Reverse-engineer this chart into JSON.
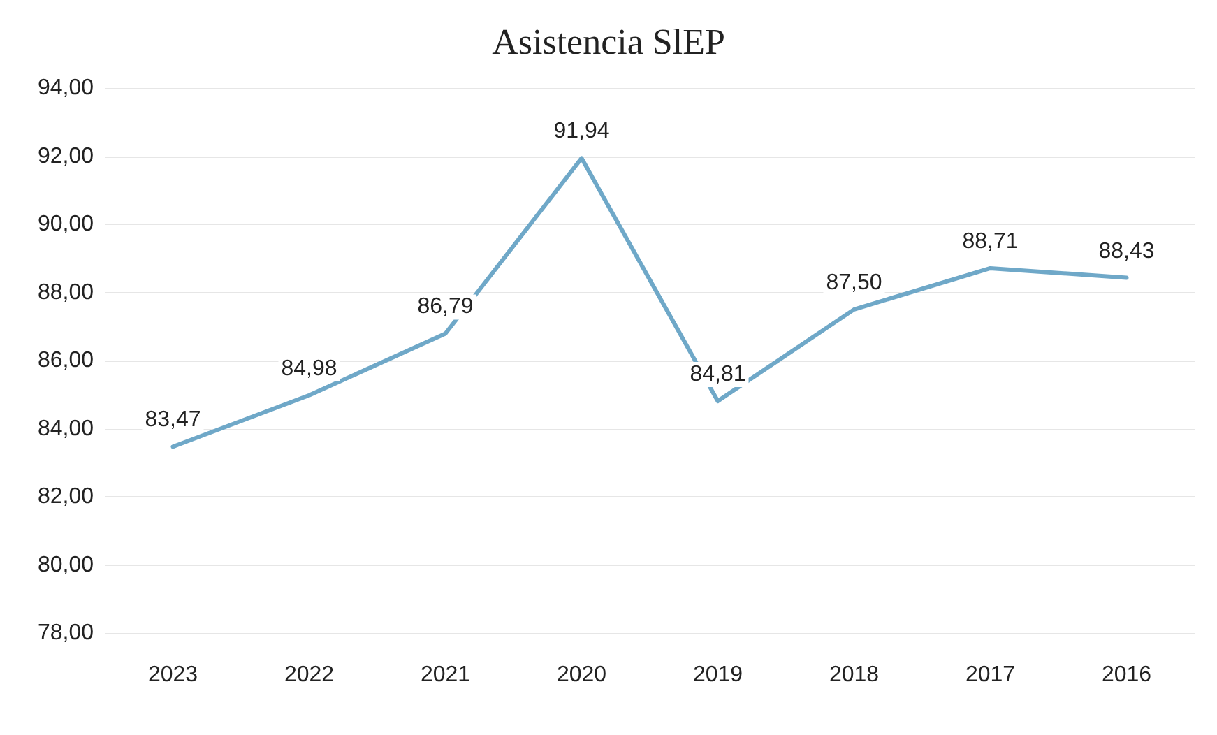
{
  "chart_data": {
    "type": "line",
    "title": "Asistencia SlEP",
    "categories": [
      "2023",
      "2022",
      "2021",
      "2020",
      "2019",
      "2018",
      "2017",
      "2016"
    ],
    "values": [
      83.47,
      84.98,
      86.79,
      91.94,
      84.81,
      87.5,
      88.71,
      88.43
    ],
    "value_labels": [
      "83,47",
      "84,98",
      "86,79",
      "91,94",
      "84,81",
      "87,50",
      "88,71",
      "88,43"
    ],
    "color": "#6fa8c8",
    "ylim": [
      78,
      94
    ],
    "yticks": [
      {
        "value": 78,
        "label": "78,00"
      },
      {
        "value": 80,
        "label": "80,00"
      },
      {
        "value": 82,
        "label": "82,00"
      },
      {
        "value": 84,
        "label": "84,00"
      },
      {
        "value": 86,
        "label": "86,00"
      },
      {
        "value": 88,
        "label": "88,00"
      },
      {
        "value": 90,
        "label": "90,00"
      },
      {
        "value": 92,
        "label": "92,00"
      },
      {
        "value": 94,
        "label": "94,00"
      }
    ],
    "grid": "y",
    "marker": "none",
    "line_style": "solid"
  }
}
